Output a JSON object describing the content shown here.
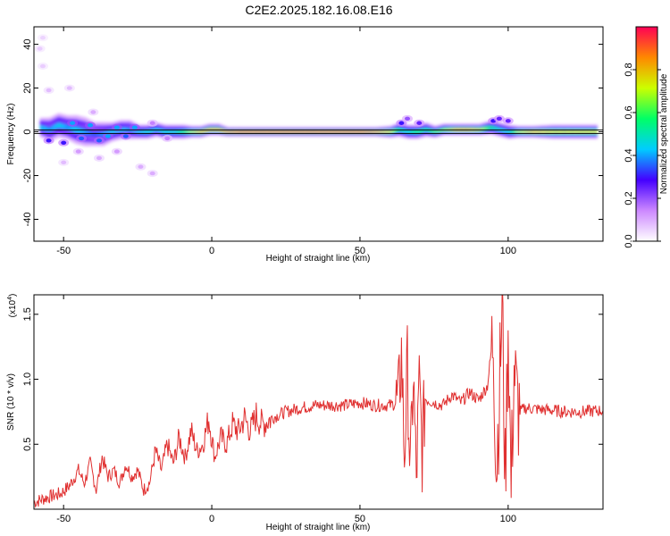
{
  "figure": {
    "title": "C2E2.2025.182.16.08.E16"
  },
  "chart_data": [
    {
      "type": "heatmap",
      "title": "C2E2.2025.182.16.08.E16",
      "xlabel": "Height of straight line (km)",
      "ylabel": "Frequency (Hz)",
      "xlim": [
        -60,
        132
      ],
      "ylim": [
        -50,
        48
      ],
      "x_ticks": [
        -50,
        0,
        50,
        100
      ],
      "y_ticks": [
        -40,
        -20,
        0,
        20,
        40
      ],
      "colorbar": {
        "label": "Normalized spectral amplitude",
        "range": [
          0,
          1
        ],
        "ticks": [
          0.0,
          0.2,
          0.4,
          0.6,
          0.8
        ],
        "tick_labels": [
          "0.0",
          "0.2",
          "0.4",
          "0.6",
          "0.8"
        ],
        "colors": [
          "#ffffff",
          "#cc88ff",
          "#4400ff",
          "#00ccff",
          "#00ff66",
          "#ccff00",
          "#ff8800",
          "#ff0055"
        ]
      },
      "horizontal_lines": [
        {
          "y": 0,
          "color": "#000000"
        }
      ],
      "ridge": [
        {
          "x": -58,
          "freq": 2,
          "width": 4,
          "amp": 0.45
        },
        {
          "x": -55,
          "freq": 1,
          "width": 5,
          "amp": 0.4
        },
        {
          "x": -52,
          "freq": 3,
          "width": 5,
          "amp": 0.45
        },
        {
          "x": -49,
          "freq": 2,
          "width": 5,
          "amp": 0.4
        },
        {
          "x": -46,
          "freq": 1,
          "width": 6,
          "amp": 0.45
        },
        {
          "x": -43,
          "freq": 0,
          "width": 6,
          "amp": 0.4
        },
        {
          "x": -40,
          "freq": -1,
          "width": 5,
          "amp": 0.35
        },
        {
          "x": -37,
          "freq": -1,
          "width": 5,
          "amp": 0.4
        },
        {
          "x": -34,
          "freq": 0,
          "width": 4,
          "amp": 0.45
        },
        {
          "x": -31,
          "freq": 1,
          "width": 4,
          "amp": 0.45
        },
        {
          "x": -28,
          "freq": 1,
          "width": 4,
          "amp": 0.4
        },
        {
          "x": -25,
          "freq": 0,
          "width": 3,
          "amp": 0.45
        },
        {
          "x": -22,
          "freq": 0,
          "width": 3,
          "amp": 0.5
        },
        {
          "x": -19,
          "freq": 1,
          "width": 3,
          "amp": 0.45
        },
        {
          "x": -16,
          "freq": 0,
          "width": 3,
          "amp": 0.5
        },
        {
          "x": -13,
          "freq": 0,
          "width": 3,
          "amp": 0.5
        },
        {
          "x": -10,
          "freq": 0,
          "width": 3,
          "amp": 0.6
        },
        {
          "x": -7,
          "freq": 0,
          "width": 2.5,
          "amp": 0.75
        },
        {
          "x": -4,
          "freq": 0,
          "width": 2.5,
          "amp": 0.85
        },
        {
          "x": -1,
          "freq": 1,
          "width": 2.5,
          "amp": 0.85
        },
        {
          "x": 2,
          "freq": 1,
          "width": 2.5,
          "amp": 0.85
        },
        {
          "x": 5,
          "freq": 0,
          "width": 2,
          "amp": 0.9
        },
        {
          "x": 10,
          "freq": 0,
          "width": 2,
          "amp": 0.95
        },
        {
          "x": 20,
          "freq": 0,
          "width": 2,
          "amp": 0.95
        },
        {
          "x": 30,
          "freq": 0,
          "width": 2,
          "amp": 0.95
        },
        {
          "x": 40,
          "freq": 0,
          "width": 2,
          "amp": 0.95
        },
        {
          "x": 50,
          "freq": 0,
          "width": 2,
          "amp": 0.95
        },
        {
          "x": 55,
          "freq": 0,
          "width": 2,
          "amp": 0.9
        },
        {
          "x": 60,
          "freq": 0,
          "width": 2.5,
          "amp": 0.8
        },
        {
          "x": 63,
          "freq": 1,
          "width": 3,
          "amp": 0.55
        },
        {
          "x": 66,
          "freq": 0,
          "width": 3,
          "amp": 0.5
        },
        {
          "x": 69,
          "freq": 0,
          "width": 3,
          "amp": 0.6
        },
        {
          "x": 72,
          "freq": 1,
          "width": 3,
          "amp": 0.55
        },
        {
          "x": 75,
          "freq": 0,
          "width": 2.5,
          "amp": 0.65
        },
        {
          "x": 78,
          "freq": 1,
          "width": 2.5,
          "amp": 0.7
        },
        {
          "x": 82,
          "freq": 1,
          "width": 2.5,
          "amp": 0.85
        },
        {
          "x": 86,
          "freq": 1,
          "width": 2.5,
          "amp": 0.85
        },
        {
          "x": 90,
          "freq": 1,
          "width": 2.5,
          "amp": 0.8
        },
        {
          "x": 94,
          "freq": 2,
          "width": 3,
          "amp": 0.55
        },
        {
          "x": 97,
          "freq": 1,
          "width": 3,
          "amp": 0.5
        },
        {
          "x": 100,
          "freq": 0,
          "width": 3,
          "amp": 0.5
        },
        {
          "x": 103,
          "freq": 0,
          "width": 2.5,
          "amp": 0.75
        },
        {
          "x": 108,
          "freq": 0,
          "width": 2.5,
          "amp": 0.85
        },
        {
          "x": 115,
          "freq": 0,
          "width": 3,
          "amp": 0.8
        },
        {
          "x": 122,
          "freq": 0,
          "width": 3,
          "amp": 0.8
        },
        {
          "x": 130,
          "freq": 0,
          "width": 3,
          "amp": 0.8
        }
      ],
      "scatter_blobs": [
        {
          "x": -47,
          "freq": 4,
          "amp": 0.4
        },
        {
          "x": -44,
          "freq": -3,
          "amp": 0.35
        },
        {
          "x": -41,
          "freq": 3,
          "amp": 0.4
        },
        {
          "x": -38,
          "freq": -4,
          "amp": 0.35
        },
        {
          "x": -35,
          "freq": -2,
          "amp": 0.4
        },
        {
          "x": -32,
          "freq": 2,
          "amp": 0.4
        },
        {
          "x": -29,
          "freq": -2,
          "amp": 0.35
        },
        {
          "x": -26,
          "freq": 2,
          "amp": 0.4
        },
        {
          "x": -55,
          "freq": -4,
          "amp": 0.3
        },
        {
          "x": -50,
          "freq": -5,
          "amp": 0.3
        },
        {
          "x": -45,
          "freq": -9,
          "amp": 0.12
        },
        {
          "x": -32,
          "freq": -9,
          "amp": 0.12
        },
        {
          "x": -20,
          "freq": -19,
          "amp": 0.1
        },
        {
          "x": -24,
          "freq": -16,
          "amp": 0.1
        },
        {
          "x": -38,
          "freq": -12,
          "amp": 0.1
        },
        {
          "x": -50,
          "freq": -14,
          "amp": 0.08
        },
        {
          "x": -58,
          "freq": 38,
          "amp": 0.06
        },
        {
          "x": -57,
          "freq": 30,
          "amp": 0.06
        },
        {
          "x": -55,
          "freq": 19,
          "amp": 0.08
        },
        {
          "x": -48,
          "freq": 20,
          "amp": 0.08
        },
        {
          "x": -57,
          "freq": 43,
          "amp": 0.05
        },
        {
          "x": -40,
          "freq": 9,
          "amp": 0.1
        },
        {
          "x": -20,
          "freq": 4,
          "amp": 0.15
        },
        {
          "x": -15,
          "freq": -3,
          "amp": 0.15
        },
        {
          "x": 64,
          "freq": 4,
          "amp": 0.3
        },
        {
          "x": 66,
          "freq": 6,
          "amp": 0.2
        },
        {
          "x": 70,
          "freq": 4,
          "amp": 0.25
        },
        {
          "x": 95,
          "freq": 5,
          "amp": 0.3
        },
        {
          "x": 97,
          "freq": 6,
          "amp": 0.25
        },
        {
          "x": 100,
          "freq": 5,
          "amp": 0.25
        }
      ]
    },
    {
      "type": "line",
      "xlabel": "Height of straight line (km)",
      "ylabel": "SNR (10 * v/v)",
      "y_multiplier_label": "(x10",
      "y_multiplier_exponent": "4",
      "y_multiplier_close": ")",
      "xlim": [
        -60,
        132
      ],
      "ylim": [
        0,
        1.65
      ],
      "x_ticks": [
        -50,
        0,
        50,
        100
      ],
      "y_ticks": [
        0.5,
        1.0,
        1.5
      ],
      "y_tick_labels": [
        "0.5",
        "1.0",
        "1.5"
      ],
      "series": [
        {
          "color": "#e03030",
          "x": [
            -60,
            -57,
            -54,
            -51,
            -48,
            -45,
            -43,
            -41,
            -39,
            -37,
            -35,
            -33,
            -31,
            -29,
            -27,
            -25,
            -23,
            -21,
            -19,
            -17,
            -15,
            -13,
            -11,
            -9,
            -7,
            -5,
            -3,
            -1,
            1,
            3,
            5,
            7,
            9,
            11,
            13,
            15,
            17,
            20,
            25,
            30,
            35,
            40,
            45,
            50,
            55,
            60,
            63,
            64,
            65,
            66,
            67,
            68,
            69,
            70,
            71,
            72,
            75,
            78,
            81,
            84,
            87,
            90,
            93,
            95,
            96,
            97,
            98,
            99,
            100,
            101,
            102,
            103,
            104,
            106,
            110,
            115,
            120,
            125,
            132
          ],
          "y": [
            0.05,
            0.08,
            0.1,
            0.12,
            0.18,
            0.3,
            0.2,
            0.35,
            0.15,
            0.4,
            0.25,
            0.3,
            0.2,
            0.35,
            0.25,
            0.3,
            0.15,
            0.2,
            0.45,
            0.3,
            0.5,
            0.35,
            0.55,
            0.4,
            0.6,
            0.45,
            0.5,
            0.7,
            0.4,
            0.55,
            0.5,
            0.65,
            0.6,
            0.7,
            0.6,
            0.72,
            0.65,
            0.7,
            0.75,
            0.78,
            0.8,
            0.8,
            0.8,
            0.82,
            0.8,
            0.8,
            0.82,
            1.2,
            0.4,
            1.1,
            0.25,
            1.05,
            0.2,
            0.95,
            0.45,
            0.85,
            0.82,
            0.8,
            0.88,
            0.82,
            0.9,
            0.84,
            0.95,
            1.35,
            0.3,
            0.85,
            1.6,
            0.2,
            1.45,
            0.15,
            1.1,
            0.8,
            0.75,
            0.78,
            0.77,
            0.76,
            0.75,
            0.75,
            0.76
          ]
        }
      ]
    }
  ]
}
